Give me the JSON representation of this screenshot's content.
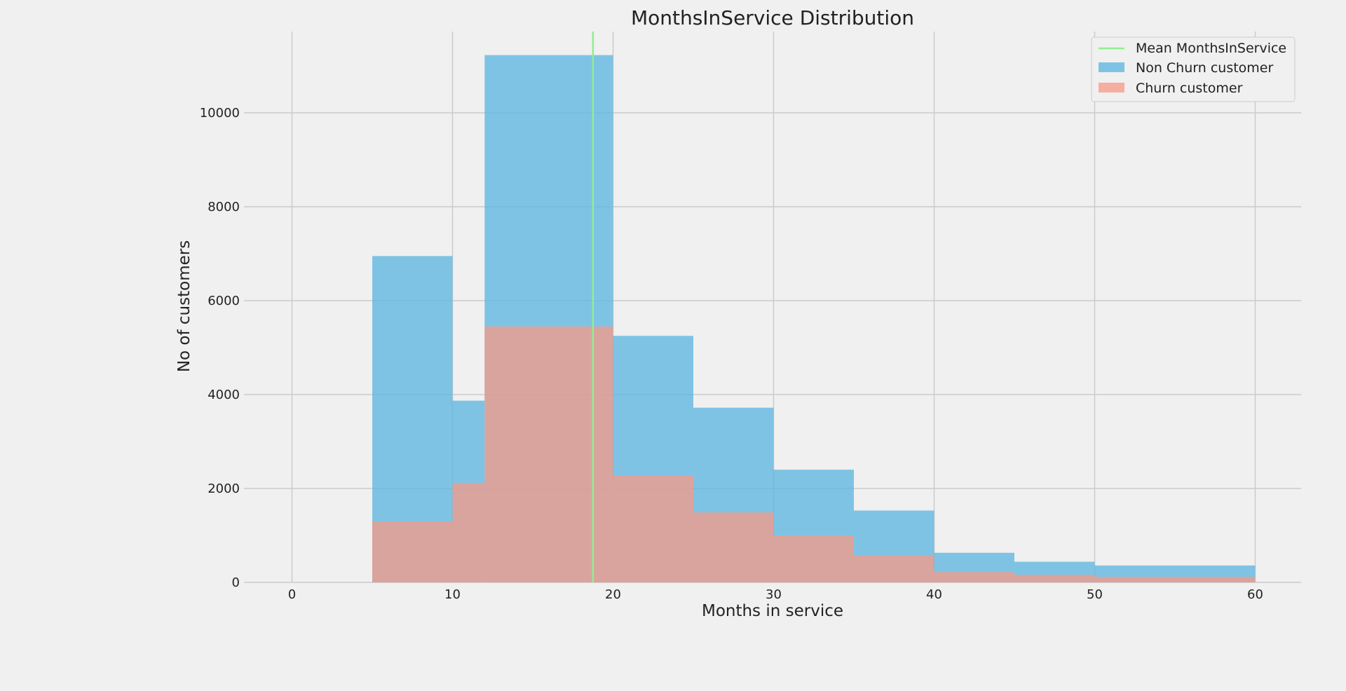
{
  "chart_data": {
    "type": "bar",
    "title": "MonthsInService Distribution",
    "xlabel": "Months in service",
    "ylabel": "No of customers",
    "xlim": [
      -5,
      63
    ],
    "ylim": [
      0,
      11800
    ],
    "xticks": [
      0,
      10,
      20,
      30,
      40,
      50,
      60
    ],
    "yticks": [
      0,
      2000,
      4000,
      6000,
      8000,
      10000
    ],
    "grid": true,
    "legend_position": "top-right",
    "bin_edges": [
      5,
      10,
      12,
      20,
      25,
      30,
      35,
      40,
      45,
      50,
      60
    ],
    "series": [
      {
        "name": "Non Churn customer",
        "color": "#5ab4e0",
        "values": [
          6950,
          3870,
          11230,
          5250,
          3720,
          2400,
          1530,
          630,
          440,
          360
        ]
      },
      {
        "name": "Churn customer",
        "color": "#f79a85",
        "values": [
          1300,
          2120,
          5450,
          2270,
          1490,
          1000,
          580,
          220,
          160,
          120
        ]
      }
    ],
    "mean_line": {
      "name": "Mean MonthsInService",
      "x": 18.75,
      "color": "#90ee90"
    }
  }
}
